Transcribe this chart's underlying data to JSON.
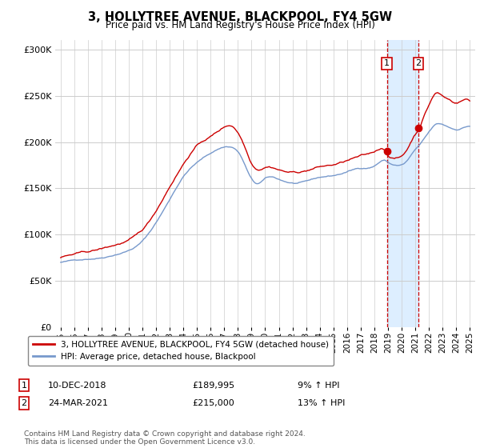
{
  "title": "3, HOLLYTREE AVENUE, BLACKPOOL, FY4 5GW",
  "subtitle": "Price paid vs. HM Land Registry's House Price Index (HPI)",
  "ylim": [
    0,
    310000
  ],
  "yticks": [
    0,
    50000,
    100000,
    150000,
    200000,
    250000,
    300000
  ],
  "ytick_labels": [
    "£0",
    "£50K",
    "£100K",
    "£150K",
    "£200K",
    "£250K",
    "£300K"
  ],
  "sale1_date_num": 2018.92,
  "sale1_price": 189995,
  "sale1_label": "10-DEC-2018",
  "sale1_price_label": "£189,995",
  "sale1_pct": "9% ↑ HPI",
  "sale2_date_num": 2021.23,
  "sale2_price": 215000,
  "sale2_label": "24-MAR-2021",
  "sale2_price_label": "£215,000",
  "sale2_pct": "13% ↑ HPI",
  "legend_line1": "3, HOLLYTREE AVENUE, BLACKPOOL, FY4 5GW (detached house)",
  "legend_line2": "HPI: Average price, detached house, Blackpool",
  "footer": "Contains HM Land Registry data © Crown copyright and database right 2024.\nThis data is licensed under the Open Government Licence v3.0.",
  "line1_color": "#cc0000",
  "line2_color": "#7799cc",
  "highlight_color": "#ddeeff",
  "background_color": "#ffffff",
  "grid_color": "#cccccc"
}
